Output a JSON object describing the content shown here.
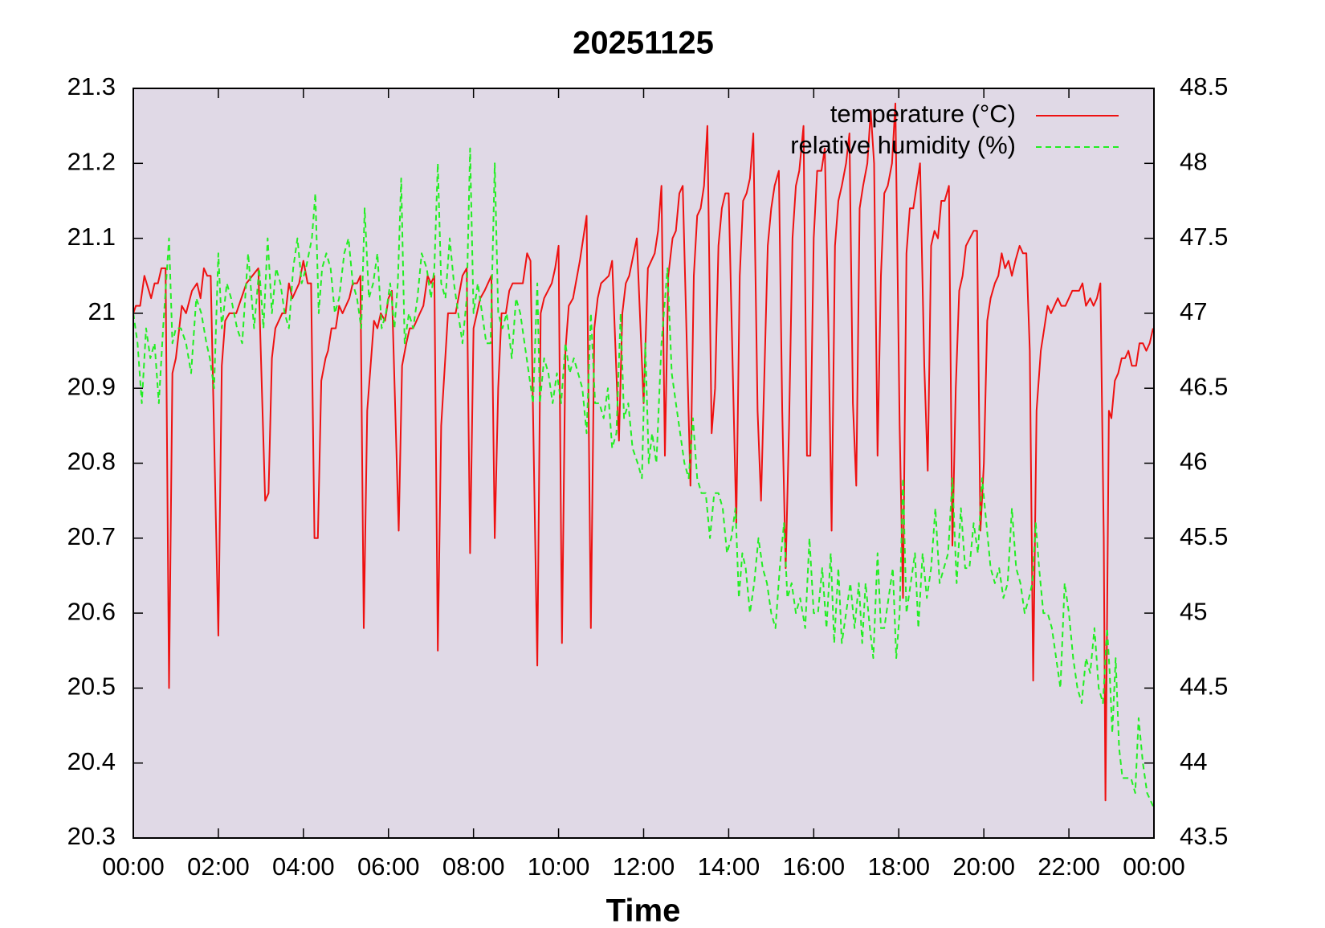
{
  "chart_data": {
    "type": "line",
    "title": "20251125",
    "xlabel": "Time",
    "xlim": [
      0,
      24
    ],
    "xticks": [
      {
        "value": 0,
        "label": "00:00"
      },
      {
        "value": 2,
        "label": "02:00"
      },
      {
        "value": 4,
        "label": "04:00"
      },
      {
        "value": 6,
        "label": "06:00"
      },
      {
        "value": 8,
        "label": "08:00"
      },
      {
        "value": 10,
        "label": "10:00"
      },
      {
        "value": 12,
        "label": "12:00"
      },
      {
        "value": 14,
        "label": "14:00"
      },
      {
        "value": 16,
        "label": "16:00"
      },
      {
        "value": 18,
        "label": "18:00"
      },
      {
        "value": 20,
        "label": "20:00"
      },
      {
        "value": 22,
        "label": "22:00"
      },
      {
        "value": 24,
        "label": "00:00"
      }
    ],
    "ylim": [
      20.3,
      21.3
    ],
    "yticks": [
      20.3,
      20.4,
      20.5,
      20.6,
      20.7,
      20.8,
      20.9,
      21,
      21.1,
      21.2,
      21.3
    ],
    "y2lim": [
      43.5,
      48.5
    ],
    "y2ticks": [
      43.5,
      44,
      44.5,
      45,
      45.5,
      46,
      46.5,
      47,
      47.5,
      48,
      48.5
    ],
    "legend": "top-right",
    "background": "#e0d9e6",
    "series": [
      {
        "name": "temperature (°C)",
        "color": "#ee1111",
        "dashed": false,
        "x": [
          0,
          0.06,
          0.16,
          0.26,
          0.42,
          0.5,
          0.58,
          0.66,
          0.76,
          0.84,
          0.92,
          1.0,
          1.14,
          1.24,
          1.38,
          1.5,
          1.58,
          1.66,
          1.74,
          1.82,
          2.0,
          2.08,
          2.16,
          2.26,
          2.42,
          2.66,
          2.94,
          3.1,
          3.18,
          3.26,
          3.34,
          3.5,
          3.58,
          3.66,
          3.74,
          3.9,
          4.0,
          4.1,
          4.18,
          4.26,
          4.34,
          4.42,
          4.52,
          4.58,
          4.66,
          4.76,
          4.84,
          4.92,
          5.08,
          5.16,
          5.26,
          5.34,
          5.42,
          5.5,
          5.66,
          5.74,
          5.82,
          5.92,
          6.0,
          6.08,
          6.24,
          6.32,
          6.42,
          6.5,
          6.58,
          6.74,
          6.82,
          6.92,
          7.0,
          7.08,
          7.16,
          7.24,
          7.4,
          7.58,
          7.74,
          7.84,
          7.92,
          8.0,
          8.16,
          8.26,
          8.42,
          8.5,
          8.58,
          8.66,
          8.76,
          8.84,
          8.92,
          9.16,
          9.26,
          9.34,
          9.5,
          9.58,
          9.66,
          9.84,
          9.92,
          10.0,
          10.08,
          10.16,
          10.24,
          10.34,
          10.5,
          10.66,
          10.76,
          10.84,
          10.92,
          11.0,
          11.18,
          11.26,
          11.42,
          11.5,
          11.58,
          11.66,
          11.84,
          12.0,
          12.1,
          12.26,
          12.34,
          12.42,
          12.5,
          12.58,
          12.68,
          12.76,
          12.84,
          12.92,
          13.1,
          13.18,
          13.26,
          13.34,
          13.42,
          13.5,
          13.6,
          13.68,
          13.76,
          13.84,
          13.92,
          14.0,
          14.18,
          14.26,
          14.34,
          14.42,
          14.5,
          14.58,
          14.68,
          14.76,
          14.92,
          15.0,
          15.08,
          15.18,
          15.26,
          15.34,
          15.42,
          15.5,
          15.58,
          15.66,
          15.76,
          15.84,
          15.92,
          16.0,
          16.08,
          16.18,
          16.26,
          16.34,
          16.42,
          16.5,
          16.58,
          16.66,
          16.76,
          16.84,
          16.92,
          17.0,
          17.08,
          17.16,
          17.26,
          17.34,
          17.42,
          17.5,
          17.58,
          17.66,
          17.74,
          17.84,
          17.92,
          18.02,
          18.1,
          18.18,
          18.26,
          18.34,
          18.42,
          18.5,
          18.6,
          18.68,
          18.76,
          18.84,
          18.92,
          19.0,
          19.08,
          19.18,
          19.26,
          19.34,
          19.42,
          19.5,
          19.58,
          19.76,
          19.84,
          19.92,
          20.0,
          20.08,
          20.16,
          20.26,
          20.34,
          20.42,
          20.5,
          20.58,
          20.66,
          20.74,
          20.84,
          20.92,
          21.0,
          21.08,
          21.16,
          21.24,
          21.34,
          21.42,
          21.5,
          21.58,
          21.74,
          21.82,
          21.92,
          22.08,
          22.24,
          22.32,
          22.4,
          22.5,
          22.58,
          22.66,
          22.74,
          22.82,
          22.86,
          22.9,
          22.94,
          23.0,
          23.08,
          23.16,
          23.24,
          23.32,
          23.4,
          23.48,
          23.58,
          23.66,
          23.74,
          23.82,
          23.9,
          23.98
        ],
        "values": [
          21.0,
          21.01,
          21.01,
          21.05,
          21.02,
          21.04,
          21.04,
          21.06,
          21.06,
          20.5,
          20.92,
          20.94,
          21.01,
          21.0,
          21.03,
          21.04,
          21.02,
          21.06,
          21.05,
          21.05,
          20.57,
          20.93,
          20.99,
          21.0,
          21.0,
          21.04,
          21.06,
          20.75,
          20.76,
          20.94,
          20.98,
          21.0,
          21.0,
          21.04,
          21.02,
          21.04,
          21.07,
          21.04,
          21.04,
          20.7,
          20.7,
          20.91,
          20.94,
          20.95,
          20.98,
          20.98,
          21.01,
          21.0,
          21.02,
          21.04,
          21.04,
          21.05,
          20.58,
          20.87,
          20.99,
          20.98,
          21.0,
          20.99,
          21.02,
          21.03,
          20.71,
          20.93,
          20.96,
          20.98,
          20.98,
          21.0,
          21.01,
          21.05,
          21.04,
          21.05,
          20.55,
          20.85,
          21.0,
          21.0,
          21.05,
          21.06,
          20.68,
          20.98,
          21.02,
          21.03,
          21.05,
          20.7,
          20.9,
          21.0,
          21.0,
          21.03,
          21.04,
          21.04,
          21.08,
          21.07,
          20.53,
          21.0,
          21.02,
          21.04,
          21.06,
          21.09,
          20.56,
          20.95,
          21.01,
          21.02,
          21.07,
          21.13,
          20.58,
          20.98,
          21.02,
          21.04,
          21.05,
          21.07,
          20.83,
          21.0,
          21.04,
          21.05,
          21.1,
          20.88,
          21.06,
          21.08,
          21.11,
          21.17,
          20.81,
          21.05,
          21.1,
          21.11,
          21.16,
          21.17,
          20.77,
          21.05,
          21.13,
          21.14,
          21.17,
          21.25,
          20.84,
          20.9,
          21.09,
          21.14,
          21.16,
          21.16,
          20.72,
          21.05,
          21.15,
          21.16,
          21.18,
          21.24,
          20.87,
          20.75,
          21.09,
          21.14,
          21.17,
          21.19,
          20.87,
          20.66,
          20.85,
          21.1,
          21.17,
          21.19,
          21.25,
          20.81,
          20.81,
          21.1,
          21.19,
          21.19,
          21.22,
          21.0,
          20.71,
          21.09,
          21.15,
          21.17,
          21.2,
          21.24,
          20.88,
          20.77,
          21.14,
          21.17,
          21.2,
          21.27,
          21.2,
          20.81,
          21.05,
          21.16,
          21.17,
          21.2,
          21.28,
          20.85,
          20.62,
          21.08,
          21.14,
          21.14,
          21.17,
          21.2,
          20.93,
          20.79,
          21.09,
          21.11,
          21.1,
          21.15,
          21.15,
          21.17,
          20.69,
          20.9,
          21.03,
          21.05,
          21.09,
          21.11,
          21.11,
          20.71,
          20.8,
          20.99,
          21.02,
          21.04,
          21.05,
          21.08,
          21.06,
          21.07,
          21.05,
          21.07,
          21.09,
          21.08,
          21.08,
          20.95,
          20.51,
          20.87,
          20.95,
          20.98,
          21.01,
          21.0,
          21.02,
          21.01,
          21.01,
          21.03,
          21.03,
          21.04,
          21.01,
          21.02,
          21.01,
          21.02,
          21.04,
          20.7,
          20.35,
          20.6,
          20.87,
          20.86,
          20.91,
          20.92,
          20.94,
          20.94,
          20.95,
          20.93,
          20.93,
          20.96,
          20.96,
          20.95,
          20.96,
          20.98
        ]
      },
      {
        "name": "relative humidity (%)",
        "color": "#22ee22",
        "dashed": true,
        "axis": "y2",
        "x": [
          0,
          0.1,
          0.2,
          0.3,
          0.4,
          0.5,
          0.6,
          0.7,
          0.84,
          0.92,
          1.0,
          1.12,
          1.24,
          1.36,
          1.48,
          1.6,
          1.72,
          1.8,
          1.9,
          2.0,
          2.08,
          2.2,
          2.3,
          2.44,
          2.56,
          2.7,
          2.84,
          2.96,
          3.06,
          3.16,
          3.26,
          3.36,
          3.46,
          3.56,
          3.66,
          3.76,
          3.86,
          3.96,
          4.06,
          4.2,
          4.28,
          4.36,
          4.44,
          4.54,
          4.64,
          4.74,
          4.84,
          4.96,
          5.06,
          5.16,
          5.26,
          5.36,
          5.44,
          5.54,
          5.64,
          5.74,
          5.84,
          5.94,
          6.04,
          6.14,
          6.22,
          6.3,
          6.38,
          6.48,
          6.58,
          6.68,
          6.78,
          6.9,
          7.0,
          7.08,
          7.16,
          7.24,
          7.34,
          7.44,
          7.54,
          7.64,
          7.74,
          7.84,
          7.92,
          8.0,
          8.1,
          8.2,
          8.3,
          8.4,
          8.5,
          8.58,
          8.68,
          8.78,
          8.9,
          9.0,
          9.1,
          9.2,
          9.3,
          9.4,
          9.5,
          9.56,
          9.66,
          9.76,
          9.86,
          9.96,
          10.06,
          10.16,
          10.26,
          10.36,
          10.46,
          10.56,
          10.66,
          10.76,
          10.86,
          10.96,
          11.06,
          11.16,
          11.26,
          11.36,
          11.46,
          11.54,
          11.64,
          11.74,
          11.86,
          11.96,
          12.04,
          12.12,
          12.2,
          12.3,
          12.42,
          12.56,
          12.66,
          12.76,
          12.86,
          12.96,
          13.06,
          13.16,
          13.26,
          13.36,
          13.46,
          13.56,
          13.66,
          13.76,
          13.86,
          13.96,
          14.06,
          14.16,
          14.24,
          14.32,
          14.4,
          14.5,
          14.6,
          14.7,
          14.8,
          14.9,
          15.0,
          15.1,
          15.2,
          15.3,
          15.38,
          15.48,
          15.58,
          15.68,
          15.8,
          15.9,
          16.0,
          16.1,
          16.2,
          16.3,
          16.4,
          16.48,
          16.58,
          16.66,
          16.76,
          16.86,
          16.96,
          17.06,
          17.14,
          17.22,
          17.32,
          17.4,
          17.5,
          17.58,
          17.66,
          17.76,
          17.86,
          17.94,
          18.02,
          18.1,
          18.18,
          18.28,
          18.38,
          18.46,
          18.56,
          18.66,
          18.76,
          18.86,
          18.96,
          19.06,
          19.16,
          19.26,
          19.36,
          19.46,
          19.56,
          19.66,
          19.76,
          19.86,
          19.96,
          20.06,
          20.16,
          20.26,
          20.36,
          20.46,
          20.56,
          20.66,
          20.76,
          20.86,
          20.96,
          21.06,
          21.14,
          21.22,
          21.3,
          21.4,
          21.5,
          21.6,
          21.7,
          21.8,
          21.9,
          22.0,
          22.1,
          22.2,
          22.3,
          22.4,
          22.5,
          22.6,
          22.7,
          22.8,
          22.9,
          22.96,
          23.02,
          23.1,
          23.18,
          23.26,
          23.36,
          23.46,
          23.56,
          23.64,
          23.74,
          23.84,
          24.0
        ],
        "values": [
          47.0,
          46.8,
          46.4,
          46.9,
          46.7,
          46.8,
          46.4,
          46.9,
          47.5,
          46.8,
          46.9,
          46.9,
          46.8,
          46.6,
          47.1,
          47.0,
          46.8,
          46.7,
          46.5,
          47.4,
          46.9,
          47.2,
          47.1,
          46.9,
          46.8,
          47.4,
          46.9,
          47.3,
          46.9,
          47.5,
          47.0,
          47.3,
          47.2,
          47.0,
          46.9,
          47.3,
          47.5,
          47.2,
          47.3,
          47.5,
          47.8,
          47.0,
          47.3,
          47.4,
          47.3,
          47.0,
          47.1,
          47.4,
          47.5,
          47.2,
          47.1,
          46.9,
          47.7,
          47.1,
          47.2,
          47.4,
          46.9,
          47.0,
          47.2,
          46.9,
          47.2,
          47.9,
          46.8,
          47.0,
          46.9,
          47.1,
          47.4,
          47.3,
          47.1,
          47.3,
          48.0,
          47.2,
          47.1,
          47.5,
          47.2,
          47.0,
          46.8,
          47.1,
          48.1,
          47.0,
          47.2,
          47.0,
          46.8,
          46.8,
          48.0,
          47.0,
          46.9,
          47.0,
          46.7,
          47.1,
          47.0,
          46.8,
          46.6,
          46.4,
          47.2,
          46.4,
          46.7,
          46.6,
          46.4,
          46.6,
          46.4,
          46.8,
          46.6,
          46.7,
          46.6,
          46.5,
          46.2,
          47.0,
          46.4,
          46.4,
          46.3,
          46.5,
          46.1,
          46.2,
          47.0,
          46.3,
          46.4,
          46.1,
          46.0,
          45.9,
          46.8,
          46.0,
          46.2,
          46.0,
          46.8,
          47.3,
          46.6,
          46.4,
          46.2,
          46.0,
          45.9,
          46.3,
          45.9,
          45.8,
          45.8,
          45.5,
          45.8,
          45.8,
          45.7,
          45.4,
          45.5,
          45.7,
          45.1,
          45.4,
          45.3,
          45.0,
          45.2,
          45.5,
          45.3,
          45.2,
          45.0,
          44.9,
          45.3,
          45.6,
          45.1,
          45.2,
          45.0,
          45.1,
          44.9,
          45.5,
          45.0,
          45.0,
          45.3,
          44.9,
          45.4,
          44.8,
          45.3,
          44.8,
          45.0,
          45.2,
          44.9,
          45.2,
          44.8,
          45.2,
          44.9,
          44.7,
          45.4,
          44.9,
          44.9,
          45.1,
          45.3,
          44.7,
          45.0,
          45.9,
          45.0,
          45.2,
          45.4,
          44.9,
          45.4,
          45.1,
          45.3,
          45.7,
          45.2,
          45.3,
          45.4,
          45.9,
          45.2,
          45.7,
          45.3,
          45.3,
          45.6,
          45.4,
          45.9,
          45.6,
          45.3,
          45.2,
          45.3,
          45.1,
          45.2,
          45.7,
          45.3,
          45.2,
          45.0,
          45.1,
          45.2,
          45.6,
          45.3,
          45.0,
          45.0,
          44.9,
          44.7,
          44.5,
          45.2,
          45.0,
          44.7,
          44.5,
          44.4,
          44.7,
          44.6,
          44.9,
          44.5,
          44.4,
          44.9,
          44.6,
          44.2,
          44.7,
          44.1,
          43.9,
          43.9,
          43.9,
          43.8,
          44.3,
          44.0,
          43.8,
          43.7
        ]
      }
    ]
  }
}
